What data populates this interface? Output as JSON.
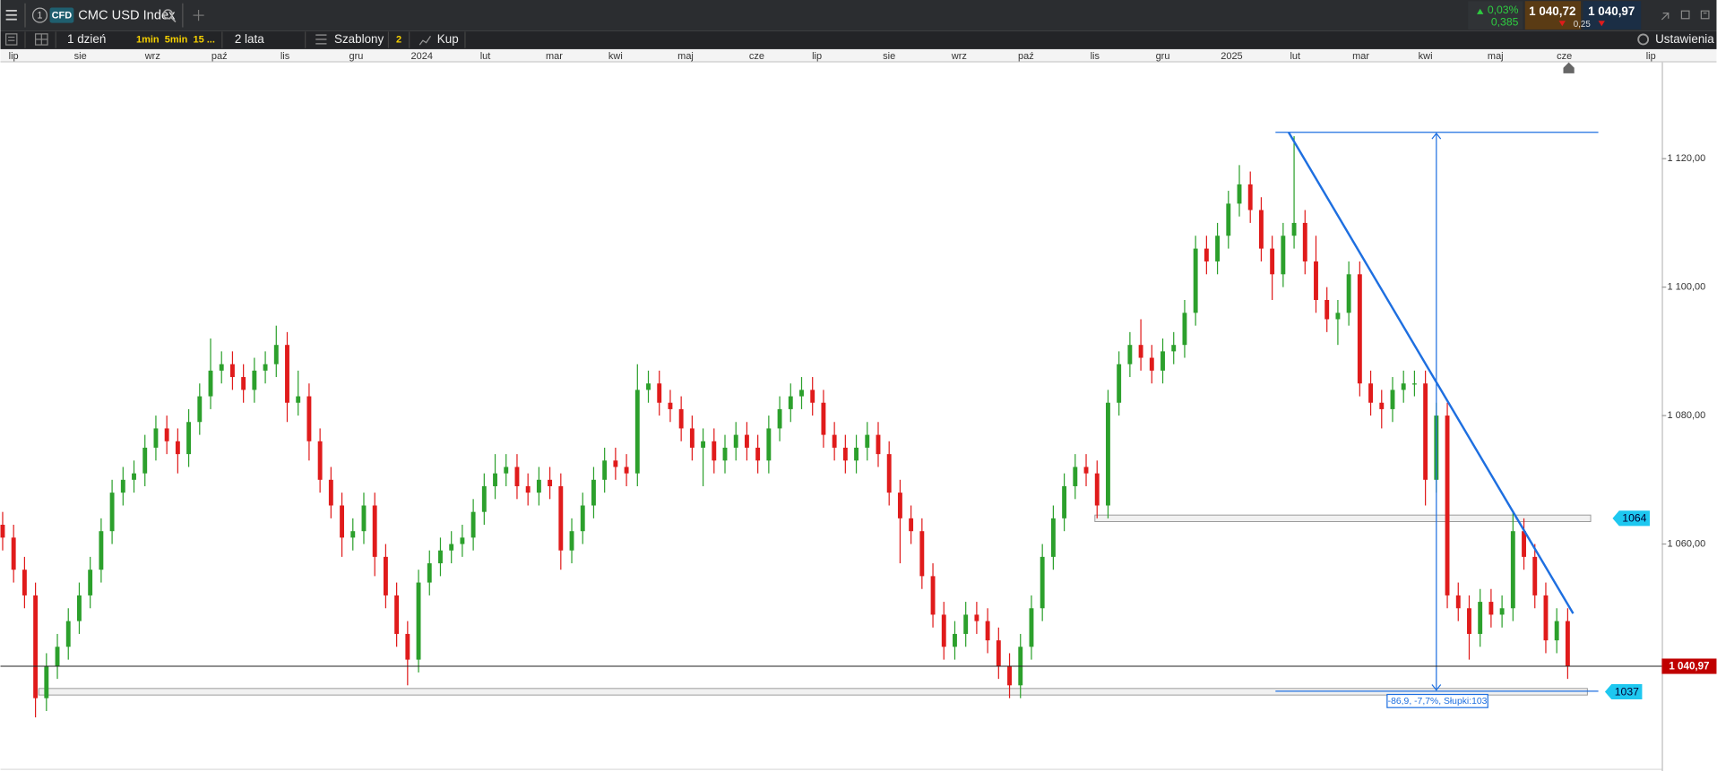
{
  "toolbar": {
    "instrument_number": "1",
    "badge": "CFD",
    "instrument": "CMC USD Index",
    "change_pct": "0,03%",
    "change_abs": "0,385",
    "sell": "1 040,72",
    "spread": "0,25",
    "buy": "1 040,97"
  },
  "toolbar2": {
    "interval": "1 dzień",
    "quick": [
      "1min",
      "5min",
      "15 ..."
    ],
    "range": "2 lata",
    "templates": "Szablony",
    "templates_count": "2",
    "order": "Kup",
    "settings": "Ustawienia"
  },
  "time_axis": [
    "lip",
    "sie",
    "wrz",
    "paź",
    "lis",
    "gru",
    "2024",
    "lut",
    "mar",
    "kwi",
    "maj",
    "cze",
    "lip",
    "sie",
    "wrz",
    "paź",
    "lis",
    "gru",
    "2025",
    "lut",
    "mar",
    "kwi",
    "maj",
    "cze",
    "lip"
  ],
  "chart_data": {
    "type": "candlestick",
    "up_color": "#2ca02c",
    "down_color": "#e01b1b",
    "ylim": [
      1025,
      1135
    ],
    "yticks": [
      {
        "value": 1060,
        "label": "1 060,00"
      },
      {
        "value": 1080,
        "label": "1 080,00"
      },
      {
        "value": 1100,
        "label": "1 100,00"
      },
      {
        "value": 1120,
        "label": "1 120,00"
      }
    ],
    "last_price": {
      "value": 1040.97,
      "label": "1 040,97"
    },
    "levels": [
      1064,
      1037
    ],
    "measurement": "-86,9, -7,7%, Słupki:103",
    "candles": [
      [
        1063,
        1065,
        1059,
        1061
      ],
      [
        1061,
        1063,
        1054,
        1056
      ],
      [
        1056,
        1058,
        1050,
        1052
      ],
      [
        1052,
        1054,
        1033,
        1036
      ],
      [
        1036,
        1043,
        1034,
        1041
      ],
      [
        1041,
        1046,
        1039,
        1044
      ],
      [
        1044,
        1050,
        1042,
        1048
      ],
      [
        1048,
        1054,
        1046,
        1052
      ],
      [
        1052,
        1058,
        1050,
        1056
      ],
      [
        1056,
        1064,
        1054,
        1062
      ],
      [
        1062,
        1070,
        1060,
        1068
      ],
      [
        1068,
        1072,
        1066,
        1070
      ],
      [
        1070,
        1073,
        1068,
        1071
      ],
      [
        1071,
        1077,
        1069,
        1075
      ],
      [
        1075,
        1080,
        1073,
        1078
      ],
      [
        1078,
        1080,
        1074,
        1076
      ],
      [
        1076,
        1078,
        1071,
        1074
      ],
      [
        1074,
        1081,
        1072,
        1079
      ],
      [
        1079,
        1085,
        1077,
        1083
      ],
      [
        1083,
        1092,
        1081,
        1087
      ],
      [
        1087,
        1090,
        1085,
        1088
      ],
      [
        1088,
        1090,
        1084,
        1086
      ],
      [
        1086,
        1088,
        1082,
        1084
      ],
      [
        1084,
        1089,
        1082,
        1087
      ],
      [
        1087,
        1090,
        1085,
        1088
      ],
      [
        1088,
        1094,
        1086,
        1091
      ],
      [
        1091,
        1093,
        1079,
        1082
      ],
      [
        1082,
        1087,
        1080,
        1083
      ],
      [
        1083,
        1085,
        1073,
        1076
      ],
      [
        1076,
        1078,
        1068,
        1070
      ],
      [
        1070,
        1072,
        1064,
        1066
      ],
      [
        1066,
        1068,
        1058,
        1061
      ],
      [
        1061,
        1064,
        1059,
        1062
      ],
      [
        1062,
        1068,
        1060,
        1066
      ],
      [
        1066,
        1068,
        1055,
        1058
      ],
      [
        1058,
        1060,
        1050,
        1052
      ],
      [
        1052,
        1054,
        1044,
        1046
      ],
      [
        1046,
        1048,
        1038,
        1042
      ],
      [
        1042,
        1056,
        1040,
        1054
      ],
      [
        1054,
        1059,
        1052,
        1057
      ],
      [
        1057,
        1061,
        1055,
        1059
      ],
      [
        1059,
        1062,
        1057,
        1060
      ],
      [
        1060,
        1063,
        1058,
        1061
      ],
      [
        1061,
        1067,
        1059,
        1065
      ],
      [
        1065,
        1071,
        1063,
        1069
      ],
      [
        1069,
        1074,
        1067,
        1071
      ],
      [
        1071,
        1074,
        1069,
        1072
      ],
      [
        1072,
        1074,
        1067,
        1069
      ],
      [
        1069,
        1071,
        1066,
        1068
      ],
      [
        1068,
        1072,
        1066,
        1070
      ],
      [
        1070,
        1072,
        1067,
        1069
      ],
      [
        1069,
        1071,
        1056,
        1059
      ],
      [
        1059,
        1064,
        1057,
        1062
      ],
      [
        1062,
        1068,
        1060,
        1066
      ],
      [
        1066,
        1072,
        1064,
        1070
      ],
      [
        1070,
        1075,
        1068,
        1073
      ],
      [
        1073,
        1075,
        1070,
        1072
      ],
      [
        1072,
        1074,
        1069,
        1071
      ],
      [
        1071,
        1088,
        1069,
        1084
      ],
      [
        1084,
        1087,
        1082,
        1085
      ],
      [
        1085,
        1087,
        1080,
        1082
      ],
      [
        1082,
        1084,
        1079,
        1081
      ],
      [
        1081,
        1083,
        1076,
        1078
      ],
      [
        1078,
        1080,
        1073,
        1075
      ],
      [
        1075,
        1078,
        1069,
        1076
      ],
      [
        1076,
        1078,
        1071,
        1073
      ],
      [
        1073,
        1077,
        1071,
        1075
      ],
      [
        1075,
        1079,
        1073,
        1077
      ],
      [
        1077,
        1079,
        1073,
        1075
      ],
      [
        1075,
        1077,
        1071,
        1073
      ],
      [
        1073,
        1080,
        1071,
        1078
      ],
      [
        1078,
        1083,
        1076,
        1081
      ],
      [
        1081,
        1085,
        1079,
        1083
      ],
      [
        1083,
        1086,
        1081,
        1084
      ],
      [
        1084,
        1086,
        1080,
        1082
      ],
      [
        1082,
        1084,
        1075,
        1077
      ],
      [
        1077,
        1079,
        1073,
        1075
      ],
      [
        1075,
        1077,
        1071,
        1073
      ],
      [
        1073,
        1077,
        1071,
        1075
      ],
      [
        1075,
        1079,
        1073,
        1077
      ],
      [
        1077,
        1079,
        1072,
        1074
      ],
      [
        1074,
        1076,
        1066,
        1068
      ],
      [
        1068,
        1070,
        1057,
        1064
      ],
      [
        1064,
        1066,
        1060,
        1062
      ],
      [
        1062,
        1064,
        1053,
        1055
      ],
      [
        1055,
        1057,
        1047,
        1049
      ],
      [
        1049,
        1051,
        1042,
        1044
      ],
      [
        1044,
        1048,
        1042,
        1046
      ],
      [
        1046,
        1051,
        1044,
        1049
      ],
      [
        1049,
        1051,
        1046,
        1048
      ],
      [
        1048,
        1050,
        1043,
        1045
      ],
      [
        1045,
        1047,
        1039,
        1041
      ],
      [
        1041,
        1043,
        1036,
        1038
      ],
      [
        1038,
        1046,
        1036,
        1044
      ],
      [
        1044,
        1052,
        1042,
        1050
      ],
      [
        1050,
        1060,
        1048,
        1058
      ],
      [
        1058,
        1066,
        1056,
        1064
      ],
      [
        1064,
        1071,
        1062,
        1069
      ],
      [
        1069,
        1074,
        1067,
        1072
      ],
      [
        1072,
        1074,
        1069,
        1071
      ],
      [
        1071,
        1073,
        1064,
        1066
      ],
      [
        1066,
        1084,
        1064,
        1082
      ],
      [
        1082,
        1090,
        1080,
        1088
      ],
      [
        1088,
        1093,
        1086,
        1091
      ],
      [
        1091,
        1095,
        1087,
        1089
      ],
      [
        1089,
        1091,
        1085,
        1087
      ],
      [
        1087,
        1092,
        1085,
        1090
      ],
      [
        1090,
        1093,
        1088,
        1091
      ],
      [
        1091,
        1098,
        1089,
        1096
      ],
      [
        1096,
        1108,
        1094,
        1106
      ],
      [
        1106,
        1108,
        1102,
        1104
      ],
      [
        1104,
        1110,
        1102,
        1108
      ],
      [
        1108,
        1115,
        1106,
        1113
      ],
      [
        1113,
        1119,
        1111,
        1116
      ],
      [
        1116,
        1118,
        1110,
        1112
      ],
      [
        1112,
        1114,
        1104,
        1106
      ],
      [
        1106,
        1108,
        1098,
        1102
      ],
      [
        1102,
        1110,
        1100,
        1108
      ],
      [
        1108,
        1123.5,
        1106,
        1110
      ],
      [
        1110,
        1112,
        1102,
        1104
      ],
      [
        1104,
        1108,
        1096,
        1098
      ],
      [
        1098,
        1100,
        1093,
        1095
      ],
      [
        1095,
        1098,
        1091,
        1096
      ],
      [
        1096,
        1104,
        1094,
        1102
      ],
      [
        1102,
        1104,
        1083,
        1085
      ],
      [
        1085,
        1087,
        1080,
        1082
      ],
      [
        1082,
        1084,
        1078,
        1081
      ],
      [
        1081,
        1086,
        1079,
        1084
      ],
      [
        1084,
        1087,
        1082,
        1085
      ],
      [
        1085,
        1087,
        1083,
        1085
      ],
      [
        1085,
        1087,
        1066,
        1070
      ],
      [
        1070,
        1082,
        1068,
        1080
      ],
      [
        1080,
        1082,
        1050,
        1052
      ],
      [
        1052,
        1054,
        1048,
        1050
      ],
      [
        1050,
        1052,
        1042,
        1046
      ],
      [
        1046,
        1053,
        1044,
        1051
      ],
      [
        1051,
        1053,
        1047,
        1049
      ],
      [
        1049,
        1052,
        1047,
        1050
      ],
      [
        1050,
        1065,
        1048,
        1062
      ],
      [
        1062,
        1064,
        1056,
        1058
      ],
      [
        1058,
        1060,
        1050,
        1052
      ],
      [
        1052,
        1054,
        1043,
        1045
      ],
      [
        1045,
        1050,
        1043,
        1048
      ],
      [
        1048,
        1050,
        1039,
        1041
      ]
    ]
  }
}
